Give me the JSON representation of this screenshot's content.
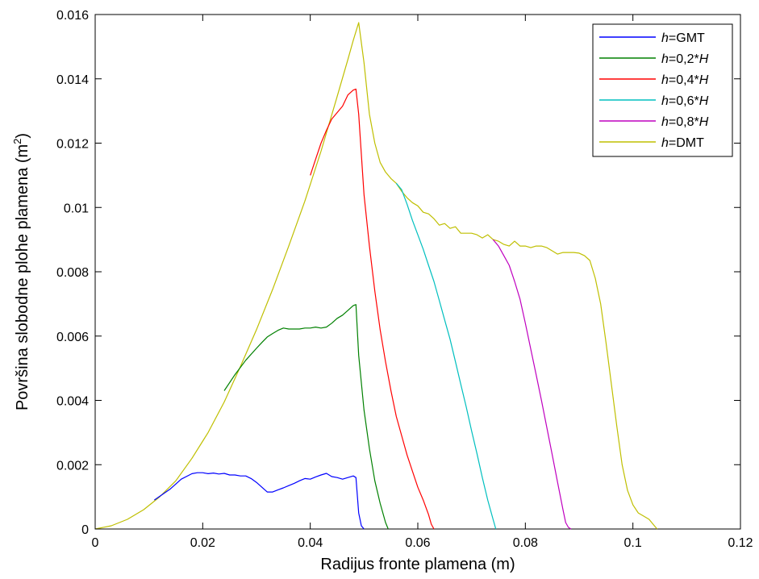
{
  "chart_data": {
    "type": "line",
    "xlabel": "Radijus fronte plamena (m)",
    "ylabel": "Površina slobodne plohe plamena (m",
    "ylabel_sup": "2",
    "ylabel_end": ")",
    "xlim": [
      0,
      0.12
    ],
    "ylim": [
      0,
      0.016
    ],
    "xticks": [
      "0",
      "0.02",
      "0.04",
      "0.06",
      "0.08",
      "0.1",
      "0.12"
    ],
    "xtick_values": [
      0,
      0.02,
      0.04,
      0.06,
      0.08,
      0.1,
      0.12
    ],
    "yticks": [
      "0",
      "0.002",
      "0.004",
      "0.006",
      "0.008",
      "0.01",
      "0.012",
      "0.014",
      "0.016"
    ],
    "ytick_values": [
      0,
      0.002,
      0.004,
      0.006,
      0.008,
      0.01,
      0.012,
      0.014,
      0.016
    ],
    "grid": false,
    "legend_position": "top-right",
    "series": [
      {
        "name_italic": "h",
        "name_rest": "=GMT",
        "italic_suffix": "",
        "color": "#0000ff",
        "x": [
          0.011,
          0.014,
          0.016,
          0.018,
          0.019,
          0.02,
          0.021,
          0.022,
          0.023,
          0.024,
          0.025,
          0.026,
          0.027,
          0.028,
          0.029,
          0.03,
          0.031,
          0.032,
          0.033,
          0.034,
          0.035,
          0.036,
          0.037,
          0.038,
          0.039,
          0.04,
          0.041,
          0.042,
          0.043,
          0.044,
          0.045,
          0.046,
          0.047,
          0.048,
          0.0485,
          0.049,
          0.0495,
          0.05
        ],
        "y": [
          0.0009,
          0.00125,
          0.00155,
          0.00172,
          0.00175,
          0.00175,
          0.00172,
          0.00174,
          0.00171,
          0.00173,
          0.00168,
          0.00168,
          0.00165,
          0.00165,
          0.00157,
          0.00145,
          0.0013,
          0.00115,
          0.00115,
          0.00122,
          0.00128,
          0.00135,
          0.00142,
          0.0015,
          0.00157,
          0.00155,
          0.00162,
          0.00168,
          0.00173,
          0.00163,
          0.0016,
          0.00155,
          0.0016,
          0.00165,
          0.0016,
          0.0005,
          0.0001,
          0.0
        ]
      },
      {
        "name_italic": "h",
        "name_rest": "=0,2*",
        "italic_suffix": "H",
        "color": "#008000",
        "x": [
          0.024,
          0.026,
          0.028,
          0.03,
          0.031,
          0.032,
          0.033,
          0.034,
          0.035,
          0.036,
          0.037,
          0.038,
          0.039,
          0.04,
          0.041,
          0.042,
          0.043,
          0.044,
          0.045,
          0.046,
          0.047,
          0.048,
          0.0485,
          0.049,
          0.05,
          0.051,
          0.052,
          0.053,
          0.054,
          0.0545
        ],
        "y": [
          0.0043,
          0.0048,
          0.00525,
          0.00562,
          0.0058,
          0.00597,
          0.00608,
          0.00618,
          0.00625,
          0.00622,
          0.00622,
          0.00622,
          0.00625,
          0.00625,
          0.00628,
          0.00625,
          0.00628,
          0.0064,
          0.00655,
          0.00665,
          0.0068,
          0.00695,
          0.00698,
          0.0054,
          0.0037,
          0.0025,
          0.0015,
          0.0008,
          0.0002,
          0.0
        ]
      },
      {
        "name_italic": "h",
        "name_rest": "=0,4*",
        "italic_suffix": "H",
        "color": "#ff0000",
        "x": [
          0.04,
          0.041,
          0.042,
          0.043,
          0.044,
          0.045,
          0.046,
          0.047,
          0.048,
          0.0485,
          0.049,
          0.05,
          0.051,
          0.052,
          0.053,
          0.054,
          0.055,
          0.056,
          0.057,
          0.058,
          0.059,
          0.06,
          0.061,
          0.062,
          0.0625,
          0.063
        ],
        "y": [
          0.011,
          0.0115,
          0.012,
          0.0124,
          0.01275,
          0.01295,
          0.01315,
          0.0135,
          0.01365,
          0.01368,
          0.0129,
          0.0104,
          0.0088,
          0.0074,
          0.0062,
          0.0052,
          0.0043,
          0.0035,
          0.0029,
          0.0023,
          0.0018,
          0.0013,
          0.0009,
          0.00045,
          0.00015,
          0.0
        ]
      },
      {
        "name_italic": "h",
        "name_rest": "=0,6*",
        "italic_suffix": "H",
        "color": "#00bfbf",
        "x": [
          0.056,
          0.057,
          0.058,
          0.059,
          0.06,
          0.061,
          0.062,
          0.063,
          0.064,
          0.065,
          0.066,
          0.067,
          0.068,
          0.069,
          0.07,
          0.071,
          0.072,
          0.073,
          0.074,
          0.0745
        ],
        "y": [
          0.01075,
          0.01055,
          0.0101,
          0.0096,
          0.00915,
          0.0087,
          0.0082,
          0.0077,
          0.0071,
          0.0065,
          0.0059,
          0.0052,
          0.0045,
          0.0038,
          0.00305,
          0.00235,
          0.0016,
          0.0009,
          0.0003,
          0.0
        ]
      },
      {
        "name_italic": "h",
        "name_rest": "=0,8*",
        "italic_suffix": "H",
        "color": "#bf00bf",
        "x": [
          0.074,
          0.075,
          0.076,
          0.077,
          0.078,
          0.079,
          0.08,
          0.081,
          0.082,
          0.083,
          0.084,
          0.085,
          0.086,
          0.087,
          0.0875,
          0.088,
          0.0885
        ],
        "y": [
          0.009,
          0.0088,
          0.0085,
          0.0082,
          0.0077,
          0.00715,
          0.0064,
          0.0056,
          0.0048,
          0.004,
          0.00315,
          0.0023,
          0.00145,
          0.0006,
          0.0002,
          5e-05,
          0.0
        ]
      },
      {
        "name_italic": "h",
        "name_rest": "=DMT",
        "italic_suffix": "",
        "color": "#bfbf00",
        "x": [
          0.0,
          0.003,
          0.006,
          0.009,
          0.012,
          0.015,
          0.018,
          0.021,
          0.024,
          0.027,
          0.03,
          0.033,
          0.036,
          0.039,
          0.042,
          0.045,
          0.047,
          0.048,
          0.049,
          0.05,
          0.051,
          0.052,
          0.053,
          0.054,
          0.055,
          0.056,
          0.057,
          0.058,
          0.059,
          0.06,
          0.061,
          0.062,
          0.063,
          0.064,
          0.065,
          0.066,
          0.067,
          0.068,
          0.069,
          0.07,
          0.071,
          0.072,
          0.073,
          0.074,
          0.075,
          0.076,
          0.077,
          0.078,
          0.079,
          0.08,
          0.081,
          0.082,
          0.083,
          0.084,
          0.085,
          0.086,
          0.087,
          0.088,
          0.089,
          0.09,
          0.091,
          0.092,
          0.093,
          0.094,
          0.095,
          0.096,
          0.097,
          0.098,
          0.099,
          0.1,
          0.101,
          0.102,
          0.103,
          0.104,
          0.1045
        ],
        "y": [
          0.0,
          0.0001,
          0.0003,
          0.0006,
          0.001,
          0.0015,
          0.0022,
          0.003,
          0.00395,
          0.00505,
          0.0062,
          0.00745,
          0.0088,
          0.0102,
          0.01175,
          0.01345,
          0.0146,
          0.0152,
          0.01575,
          0.0145,
          0.0129,
          0.012,
          0.0114,
          0.0111,
          0.0109,
          0.01075,
          0.0105,
          0.0103,
          0.01015,
          0.01005,
          0.00985,
          0.0098,
          0.00965,
          0.00945,
          0.0095,
          0.00935,
          0.0094,
          0.0092,
          0.0092,
          0.0092,
          0.00915,
          0.00905,
          0.00915,
          0.009,
          0.00895,
          0.00885,
          0.0088,
          0.00895,
          0.0088,
          0.0088,
          0.00875,
          0.0088,
          0.0088,
          0.00875,
          0.00865,
          0.00855,
          0.0086,
          0.0086,
          0.0086,
          0.00858,
          0.0085,
          0.00835,
          0.0078,
          0.007,
          0.0058,
          0.0045,
          0.0032,
          0.002,
          0.0012,
          0.00075,
          0.0005,
          0.0004,
          0.0003,
          0.0001,
          0.0
        ]
      }
    ]
  }
}
